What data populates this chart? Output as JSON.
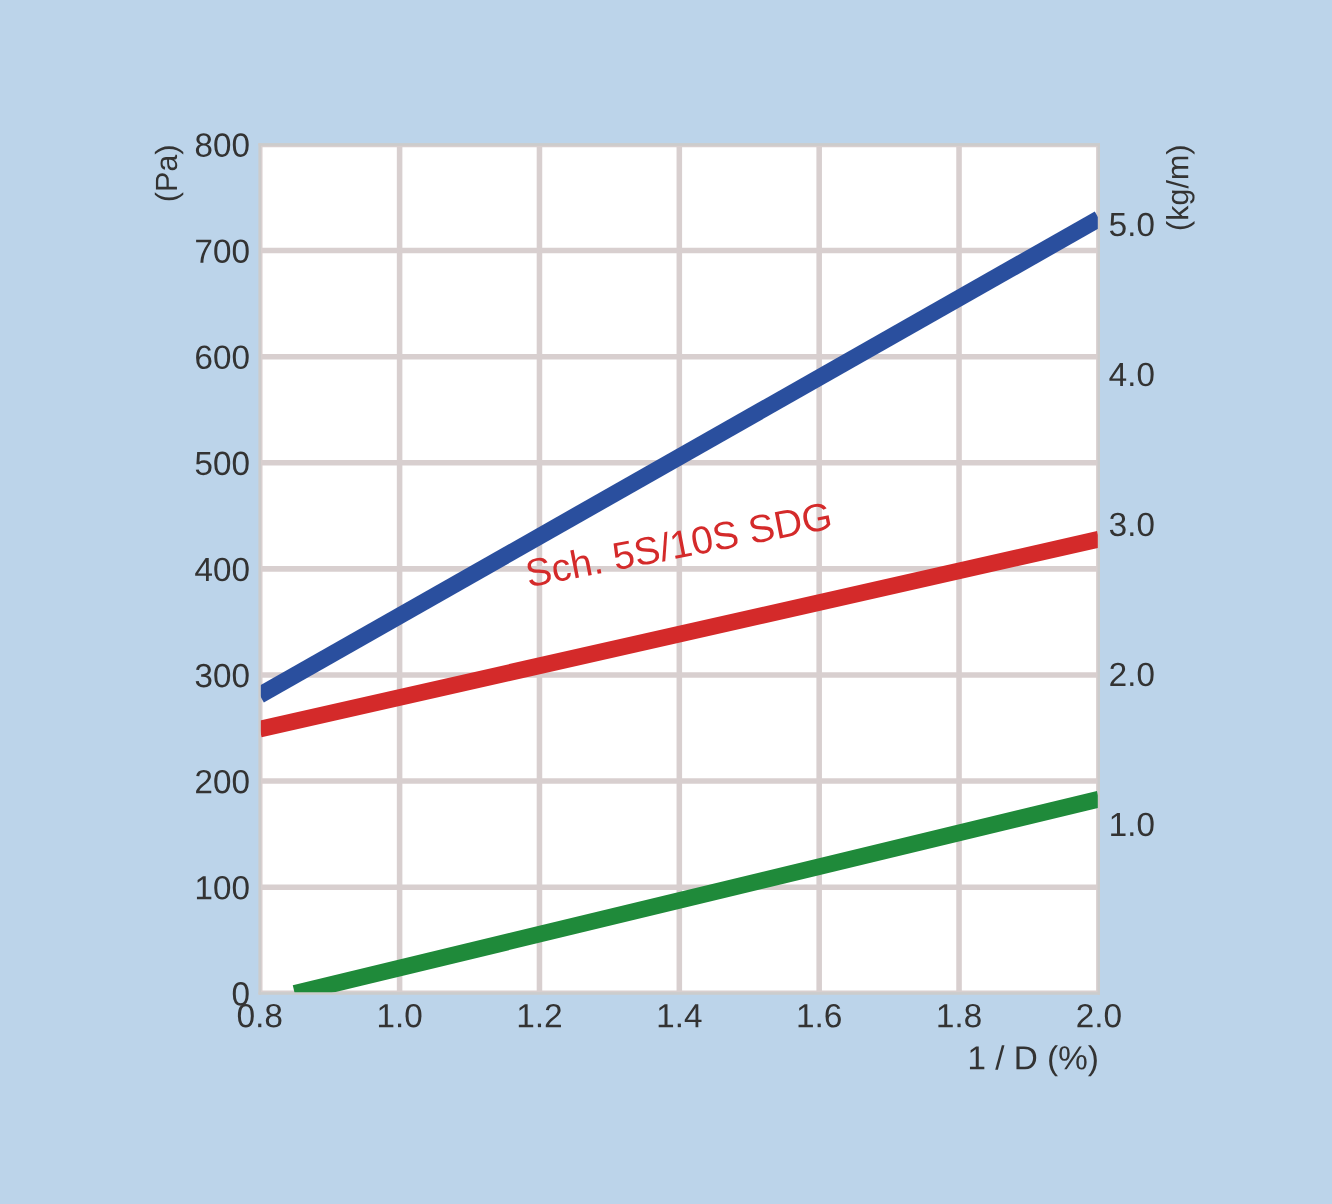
{
  "chart_data": {
    "type": "line",
    "xlabel": "1 / D (%)",
    "ylabel": "(Pa)",
    "y2label": "(kg/m)",
    "xlim": [
      0.8,
      2.0
    ],
    "xticks": [
      {
        "value": 0.8,
        "label": "0.8"
      },
      {
        "value": 1.0,
        "label": "1.0"
      },
      {
        "value": 1.2,
        "label": "1.2"
      },
      {
        "value": 1.4,
        "label": "1.4"
      },
      {
        "value": 1.6,
        "label": "1.6"
      },
      {
        "value": 1.8,
        "label": "1.8"
      },
      {
        "value": 2.0,
        "label": "2.0"
      }
    ],
    "ylim": [
      0,
      800
    ],
    "yticks": [
      0,
      100,
      200,
      300,
      400,
      500,
      600,
      700,
      800
    ],
    "y2lim": [
      -0.13,
      5.53
    ],
    "y2ticks": [
      {
        "value": 1.0,
        "label": "1.0"
      },
      {
        "value": 2.0,
        "label": "2.0"
      },
      {
        "value": 3.0,
        "label": "3.0"
      },
      {
        "value": 4.0,
        "label": "4.0"
      },
      {
        "value": 5.0,
        "label": "5.0"
      }
    ],
    "grid": true,
    "marker": "none",
    "line_style": "solid",
    "series": [
      {
        "color": "#2a4f9e",
        "x": [
          0.8,
          2.0
        ],
        "values": [
          281,
          730
        ]
      },
      {
        "name": "Sch. 5S/10S SDG",
        "color": "#d42a2a",
        "x": [
          0.8,
          2.0
        ],
        "values": [
          249,
          428
        ]
      },
      {
        "color": "#1f8a3a",
        "x": [
          0.85,
          2.0
        ],
        "values": [
          0,
          183
        ]
      }
    ]
  }
}
